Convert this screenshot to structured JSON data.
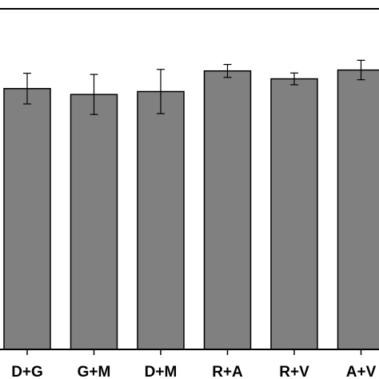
{
  "chart_data": {
    "type": "bar",
    "title": "",
    "xlabel": "",
    "ylabel": "",
    "categories": [
      "D+G",
      "G+M",
      "D+M",
      "R+A",
      "R+V",
      "A+V"
    ],
    "values": [
      88.5,
      86.5,
      87.5,
      94.5,
      91.8,
      94.8
    ],
    "error": [
      5.2,
      6.8,
      7.5,
      2.2,
      2.0,
      3.3
    ],
    "ylim": [
      0,
      108
    ],
    "grid": false,
    "legend": "none",
    "colors": {
      "bar_fill": "#808080",
      "bar_stroke": "#000000",
      "axis": "#000000",
      "background": "#ffffff"
    }
  }
}
